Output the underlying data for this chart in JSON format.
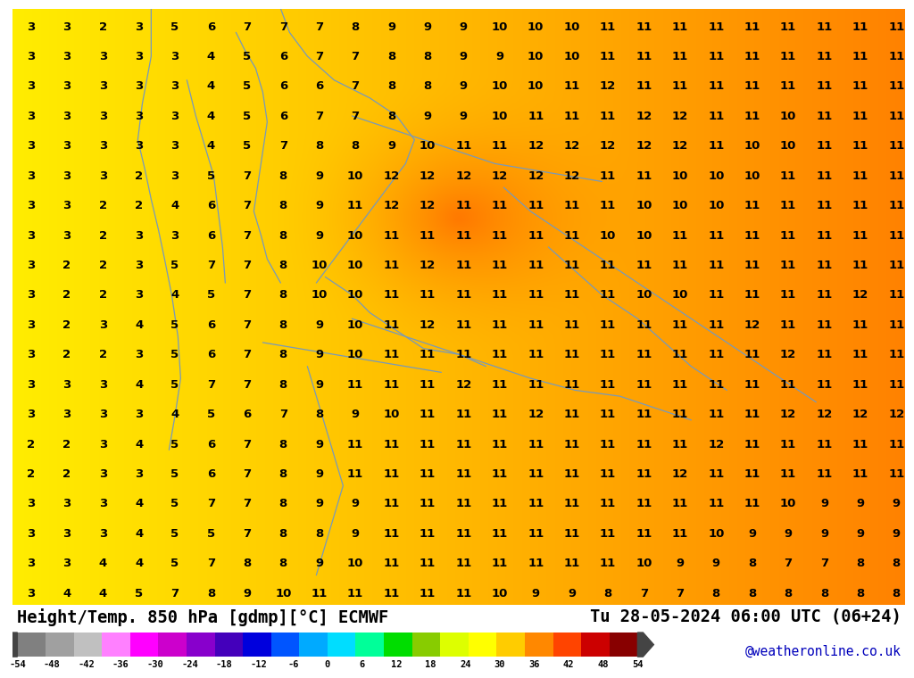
{
  "title_left": "Height/Temp. 850 hPa [gdmp][°C] ECMWF",
  "title_right": "Tu 28-05-2024 06:00 UTC (06+24)",
  "credit": "@weatheronline.co.uk",
  "colorbar_values": [
    -54,
    -48,
    -42,
    -36,
    -30,
    -24,
    -18,
    -12,
    -6,
    0,
    6,
    12,
    18,
    24,
    30,
    36,
    42,
    48,
    54
  ],
  "cbar_colors": [
    "#808080",
    "#a0a0a0",
    "#c0c0c0",
    "#ff80ff",
    "#ff00ff",
    "#cc00cc",
    "#8800cc",
    "#4400bb",
    "#0000dd",
    "#0055ff",
    "#00aaff",
    "#00ddff",
    "#00ff99",
    "#00dd00",
    "#88cc00",
    "#ddff00",
    "#ffff00",
    "#ffcc00",
    "#ff8800",
    "#ff4400",
    "#cc0000",
    "#880000"
  ],
  "map_line_color": "#7799bb",
  "bg_yellow": "#ffee00",
  "bg_orange": "#ffaa00",
  "bg_deep_orange": "#ff8800",
  "bottom_bg": "#ffffff",
  "text_color": "#000000",
  "credit_color": "#0000bb",
  "title_fontsize": 13.5,
  "number_fontsize": 9.5,
  "numbers": [
    [
      3,
      3,
      2,
      3,
      5,
      6,
      7,
      7,
      7,
      8,
      9,
      9,
      9,
      10,
      10,
      10,
      11,
      11,
      11,
      11,
      11,
      11,
      11,
      11,
      11
    ],
    [
      3,
      3,
      3,
      3,
      3,
      4,
      5,
      6,
      7,
      7,
      8,
      8,
      9,
      9,
      10,
      10,
      11,
      11,
      11,
      11,
      11,
      11,
      11,
      11,
      11
    ],
    [
      3,
      3,
      3,
      3,
      3,
      4,
      5,
      6,
      6,
      7,
      8,
      8,
      9,
      10,
      10,
      11,
      12,
      11,
      11,
      11,
      11,
      11,
      11,
      11,
      11
    ],
    [
      3,
      3,
      3,
      3,
      3,
      4,
      5,
      6,
      7,
      7,
      8,
      9,
      9,
      10,
      11,
      11,
      11,
      12,
      12,
      11,
      11,
      10,
      11,
      11,
      11
    ],
    [
      3,
      3,
      3,
      3,
      3,
      4,
      5,
      7,
      8,
      8,
      9,
      10,
      11,
      11,
      12,
      12,
      12,
      12,
      12,
      11,
      10,
      10,
      11,
      11,
      11
    ],
    [
      3,
      3,
      3,
      2,
      3,
      5,
      7,
      8,
      9,
      10,
      12,
      12,
      12,
      12,
      12,
      12,
      11,
      11,
      10,
      10,
      10,
      11,
      11,
      11,
      11
    ],
    [
      3,
      3,
      2,
      2,
      4,
      6,
      7,
      8,
      9,
      11,
      12,
      12,
      11,
      11,
      11,
      11,
      11,
      10,
      10,
      10,
      11,
      11,
      11,
      11,
      11
    ],
    [
      3,
      3,
      2,
      3,
      3,
      6,
      7,
      8,
      9,
      10,
      11,
      11,
      11,
      11,
      11,
      11,
      10,
      10,
      11,
      11,
      11,
      11,
      11,
      11,
      11
    ],
    [
      3,
      2,
      2,
      3,
      5,
      7,
      7,
      8,
      10,
      10,
      11,
      12,
      11,
      11,
      11,
      11,
      11,
      11,
      11,
      11,
      11,
      11,
      11,
      11,
      11
    ],
    [
      3,
      2,
      2,
      3,
      4,
      5,
      7,
      8,
      10,
      10,
      11,
      11,
      11,
      11,
      11,
      11,
      11,
      10,
      10,
      11,
      11,
      11,
      11,
      12,
      11
    ],
    [
      3,
      2,
      3,
      4,
      5,
      6,
      7,
      8,
      9,
      10,
      11,
      12,
      11,
      11,
      11,
      11,
      11,
      11,
      11,
      11,
      12,
      11,
      11,
      11,
      11
    ],
    [
      3,
      2,
      2,
      3,
      5,
      6,
      7,
      8,
      9,
      10,
      11,
      11,
      11,
      11,
      11,
      11,
      11,
      11,
      11,
      11,
      11,
      12,
      11,
      11,
      11
    ],
    [
      3,
      3,
      3,
      4,
      5,
      7,
      7,
      8,
      9,
      11,
      11,
      11,
      12,
      11,
      11,
      11,
      11,
      11,
      11,
      11,
      11,
      11,
      11,
      11,
      11
    ],
    [
      3,
      3,
      3,
      3,
      4,
      5,
      6,
      7,
      8,
      9,
      10,
      11,
      11,
      11,
      12,
      11,
      11,
      11,
      11,
      11,
      11,
      12,
      12,
      12,
      12
    ],
    [
      2,
      2,
      3,
      4,
      5,
      6,
      7,
      8,
      9,
      11,
      11,
      11,
      11,
      11,
      11,
      11,
      11,
      11,
      11,
      12,
      11,
      11,
      11,
      11,
      11
    ],
    [
      2,
      2,
      3,
      3,
      5,
      6,
      7,
      8,
      9,
      11,
      11,
      11,
      11,
      11,
      11,
      11,
      11,
      11,
      12,
      11,
      11,
      11,
      11,
      11,
      11
    ],
    [
      3,
      3,
      3,
      4,
      5,
      7,
      7,
      8,
      9,
      9,
      11,
      11,
      11,
      11,
      11,
      11,
      11,
      11,
      11,
      11,
      11,
      10,
      9,
      9,
      9
    ],
    [
      3,
      3,
      3,
      4,
      5,
      5,
      7,
      8,
      8,
      9,
      11,
      11,
      11,
      11,
      11,
      11,
      11,
      11,
      11,
      10,
      9,
      9,
      9,
      9,
      9
    ],
    [
      3,
      3,
      4,
      4,
      5,
      7,
      8,
      8,
      9,
      10,
      11,
      11,
      11,
      11,
      11,
      11,
      11,
      10,
      9,
      9,
      8,
      7,
      7,
      8,
      8
    ],
    [
      3,
      4,
      4,
      5,
      7,
      8,
      9,
      10,
      11,
      11,
      11,
      11,
      11,
      10,
      9,
      9,
      8,
      7,
      7,
      8,
      8,
      8,
      8,
      8,
      8
    ]
  ]
}
